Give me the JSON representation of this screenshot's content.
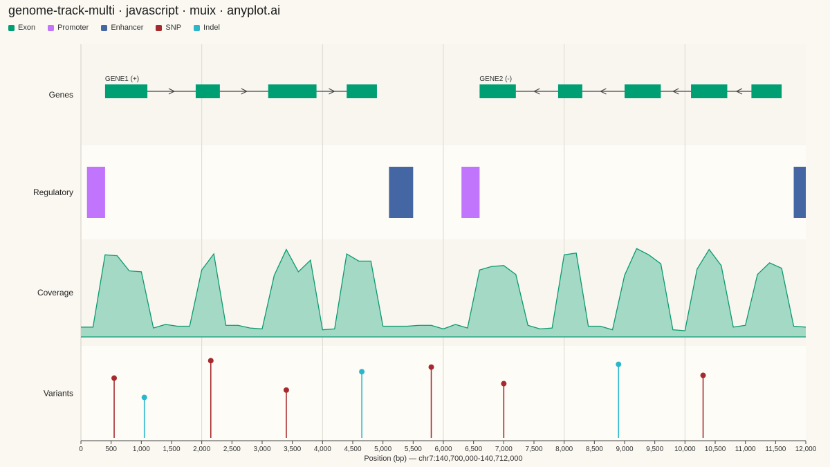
{
  "title": "genome-track-multi · javascript · muix · anyplot.ai",
  "colors": {
    "exon": "#009e73",
    "promoter": "#c175fc",
    "enhancer": "#4466a3",
    "snp": "#a62a2d",
    "indel": "#2ab7cc",
    "coverage_fill": "#a3d9c5",
    "coverage_line": "#0a9a70"
  },
  "legend": [
    {
      "label": "Exon",
      "color": "#009e73"
    },
    {
      "label": "Promoter",
      "color": "#c175fc"
    },
    {
      "label": "Enhancer",
      "color": "#4466a3"
    },
    {
      "label": "SNP",
      "color": "#a62a2d"
    },
    {
      "label": "Indel",
      "color": "#2ab7cc"
    }
  ],
  "chart_data": {
    "type": "genome-tracks",
    "xlabel": "Position (bp) — chr7:140,700,000-140,712,000",
    "xlim": [
      0,
      12000
    ],
    "xticks": [
      0,
      500,
      1000,
      1500,
      2000,
      2500,
      3000,
      3500,
      4000,
      4500,
      5000,
      5500,
      6000,
      6500,
      7000,
      7500,
      8000,
      8500,
      9000,
      9500,
      10000,
      10500,
      11000,
      11500,
      12000
    ],
    "xtick_labels": [
      "0",
      "500",
      "1,000",
      "1,500",
      "2,000",
      "2,500",
      "3,000",
      "3,500",
      "4,000",
      "4,500",
      "5,000",
      "5,500",
      "6,000",
      "6,500",
      "7,000",
      "7,500",
      "8,000",
      "8,500",
      "9,000",
      "9,500",
      "10,000",
      "10,500",
      "11,000",
      "11,500",
      "12,000"
    ],
    "vertical_gridlines": [
      2000,
      4000,
      6000,
      8000,
      10000
    ],
    "tracks": [
      {
        "name": "Genes",
        "genes": [
          {
            "label": "GENE1 (+)",
            "strand": "+",
            "start": 400,
            "end": 4900,
            "exons": [
              [
                400,
                1100
              ],
              [
                1900,
                2300
              ],
              [
                3100,
                3900
              ],
              [
                4400,
                4900
              ]
            ]
          },
          {
            "label": "GENE2 (-)",
            "strand": "-",
            "start": 6600,
            "end": 11600,
            "exons": [
              [
                6600,
                7200
              ],
              [
                7900,
                8300
              ],
              [
                9000,
                9600
              ],
              [
                10100,
                10700
              ],
              [
                11100,
                11600
              ]
            ]
          }
        ]
      },
      {
        "name": "Regulatory",
        "elements": [
          {
            "type": "Promoter",
            "start": 100,
            "end": 400
          },
          {
            "type": "Enhancer",
            "start": 5100,
            "end": 5500
          },
          {
            "type": "Promoter",
            "start": 6300,
            "end": 6600
          },
          {
            "type": "Enhancer",
            "start": 11800,
            "end": 12000
          }
        ]
      },
      {
        "name": "Coverage",
        "ylim": [
          0,
          1.0
        ],
        "points": [
          [
            0,
            0.11
          ],
          [
            200,
            0.11
          ],
          [
            400,
            0.92
          ],
          [
            600,
            0.91
          ],
          [
            800,
            0.74
          ],
          [
            1000,
            0.73
          ],
          [
            1200,
            0.1
          ],
          [
            1400,
            0.14
          ],
          [
            1600,
            0.12
          ],
          [
            1800,
            0.12
          ],
          [
            2000,
            0.75
          ],
          [
            2200,
            0.93
          ],
          [
            2400,
            0.13
          ],
          [
            2600,
            0.13
          ],
          [
            2800,
            0.1
          ],
          [
            3000,
            0.09
          ],
          [
            3200,
            0.69
          ],
          [
            3400,
            0.98
          ],
          [
            3600,
            0.73
          ],
          [
            3800,
            0.86
          ],
          [
            4000,
            0.08
          ],
          [
            4200,
            0.09
          ],
          [
            4400,
            0.93
          ],
          [
            4600,
            0.85
          ],
          [
            4800,
            0.85
          ],
          [
            5000,
            0.12
          ],
          [
            5200,
            0.12
          ],
          [
            5400,
            0.12
          ],
          [
            5600,
            0.13
          ],
          [
            5800,
            0.13
          ],
          [
            6000,
            0.09
          ],
          [
            6200,
            0.14
          ],
          [
            6400,
            0.1
          ],
          [
            6600,
            0.75
          ],
          [
            6800,
            0.79
          ],
          [
            7000,
            0.8
          ],
          [
            7200,
            0.7
          ],
          [
            7400,
            0.13
          ],
          [
            7600,
            0.09
          ],
          [
            7800,
            0.1
          ],
          [
            8000,
            0.92
          ],
          [
            8200,
            0.94
          ],
          [
            8400,
            0.12
          ],
          [
            8600,
            0.12
          ],
          [
            8800,
            0.08
          ],
          [
            9000,
            0.69
          ],
          [
            9200,
            0.99
          ],
          [
            9400,
            0.92
          ],
          [
            9600,
            0.82
          ],
          [
            9800,
            0.08
          ],
          [
            10000,
            0.07
          ],
          [
            10200,
            0.76
          ],
          [
            10400,
            0.98
          ],
          [
            10600,
            0.8
          ],
          [
            10800,
            0.11
          ],
          [
            11000,
            0.13
          ],
          [
            11200,
            0.7
          ],
          [
            11400,
            0.83
          ],
          [
            11600,
            0.77
          ],
          [
            11800,
            0.12
          ],
          [
            12000,
            0.11
          ]
        ]
      },
      {
        "name": "Variants",
        "ylim": [
          0,
          1.0
        ],
        "variants": [
          {
            "type": "SNP",
            "pos": 550,
            "value": 0.65
          },
          {
            "type": "Indel",
            "pos": 1050,
            "value": 0.44
          },
          {
            "type": "SNP",
            "pos": 2150,
            "value": 0.84
          },
          {
            "type": "SNP",
            "pos": 3400,
            "value": 0.52
          },
          {
            "type": "Indel",
            "pos": 4650,
            "value": 0.72
          },
          {
            "type": "SNP",
            "pos": 5800,
            "value": 0.77
          },
          {
            "type": "SNP",
            "pos": 7000,
            "value": 0.59
          },
          {
            "type": "Indel",
            "pos": 8900,
            "value": 0.8
          },
          {
            "type": "SNP",
            "pos": 10300,
            "value": 0.68
          }
        ]
      }
    ]
  }
}
